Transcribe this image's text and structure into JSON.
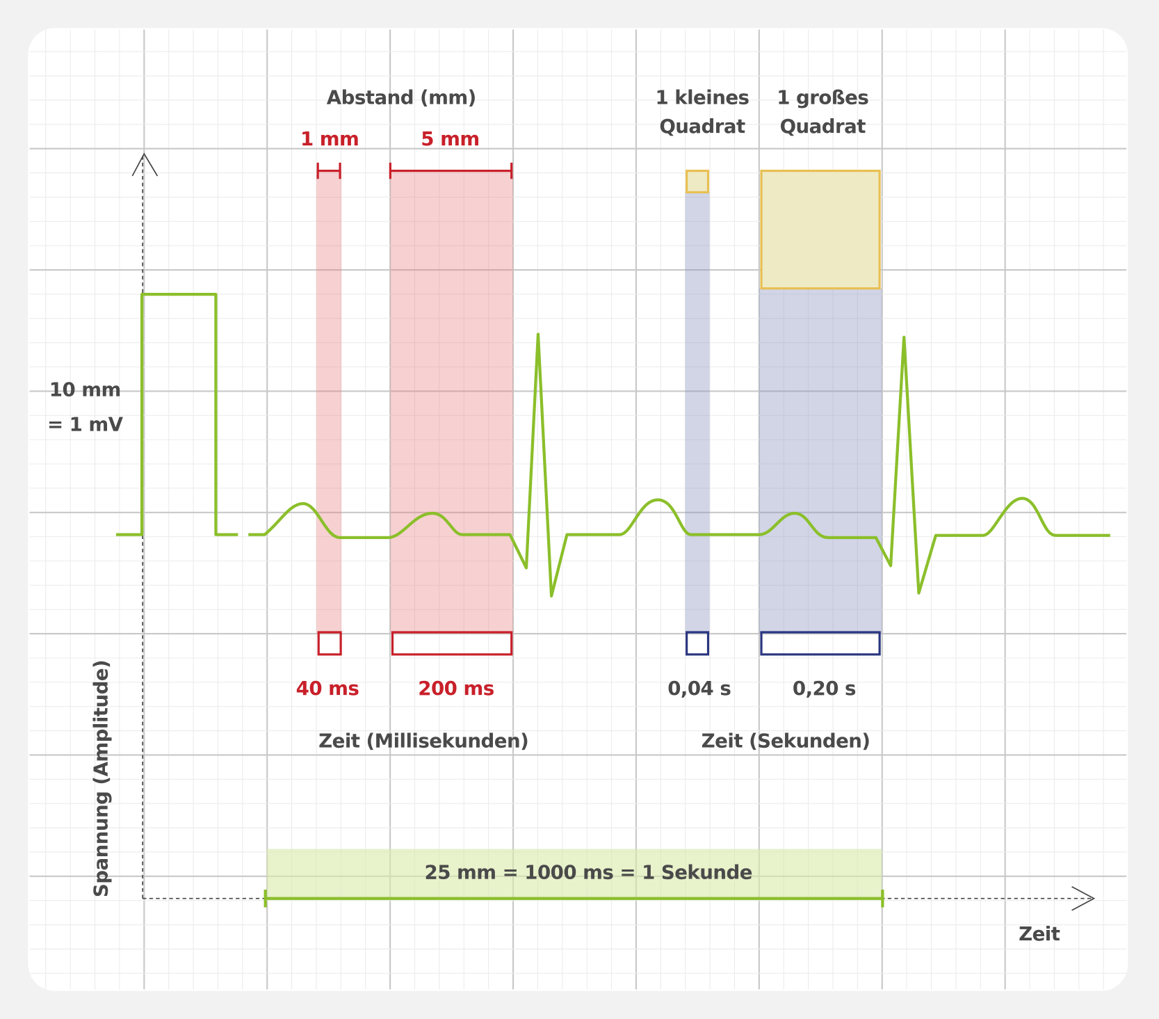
{
  "header": {
    "title": "Abstand (mm)",
    "distance_small": "1 mm",
    "distance_large": "5 mm"
  },
  "squares": {
    "small": [
      "1 kleines",
      "Quadrat"
    ],
    "large": [
      "1 großes",
      "Quadrat"
    ]
  },
  "calibration": [
    "10 mm",
    "= 1 mV"
  ],
  "times": {
    "ms_small": "40 ms",
    "ms_large": "200 ms",
    "s_small": "0,04 s",
    "s_large": "0,20 s",
    "ms_label": "Zeit (Millisekunden)",
    "s_label": "Zeit (Sekunden)"
  },
  "axes": {
    "y_label": "Spannung (Amplitude)",
    "x_label": "Zeit"
  },
  "scale_note": "25 mm = 1000 ms = 1 Sekunde"
}
